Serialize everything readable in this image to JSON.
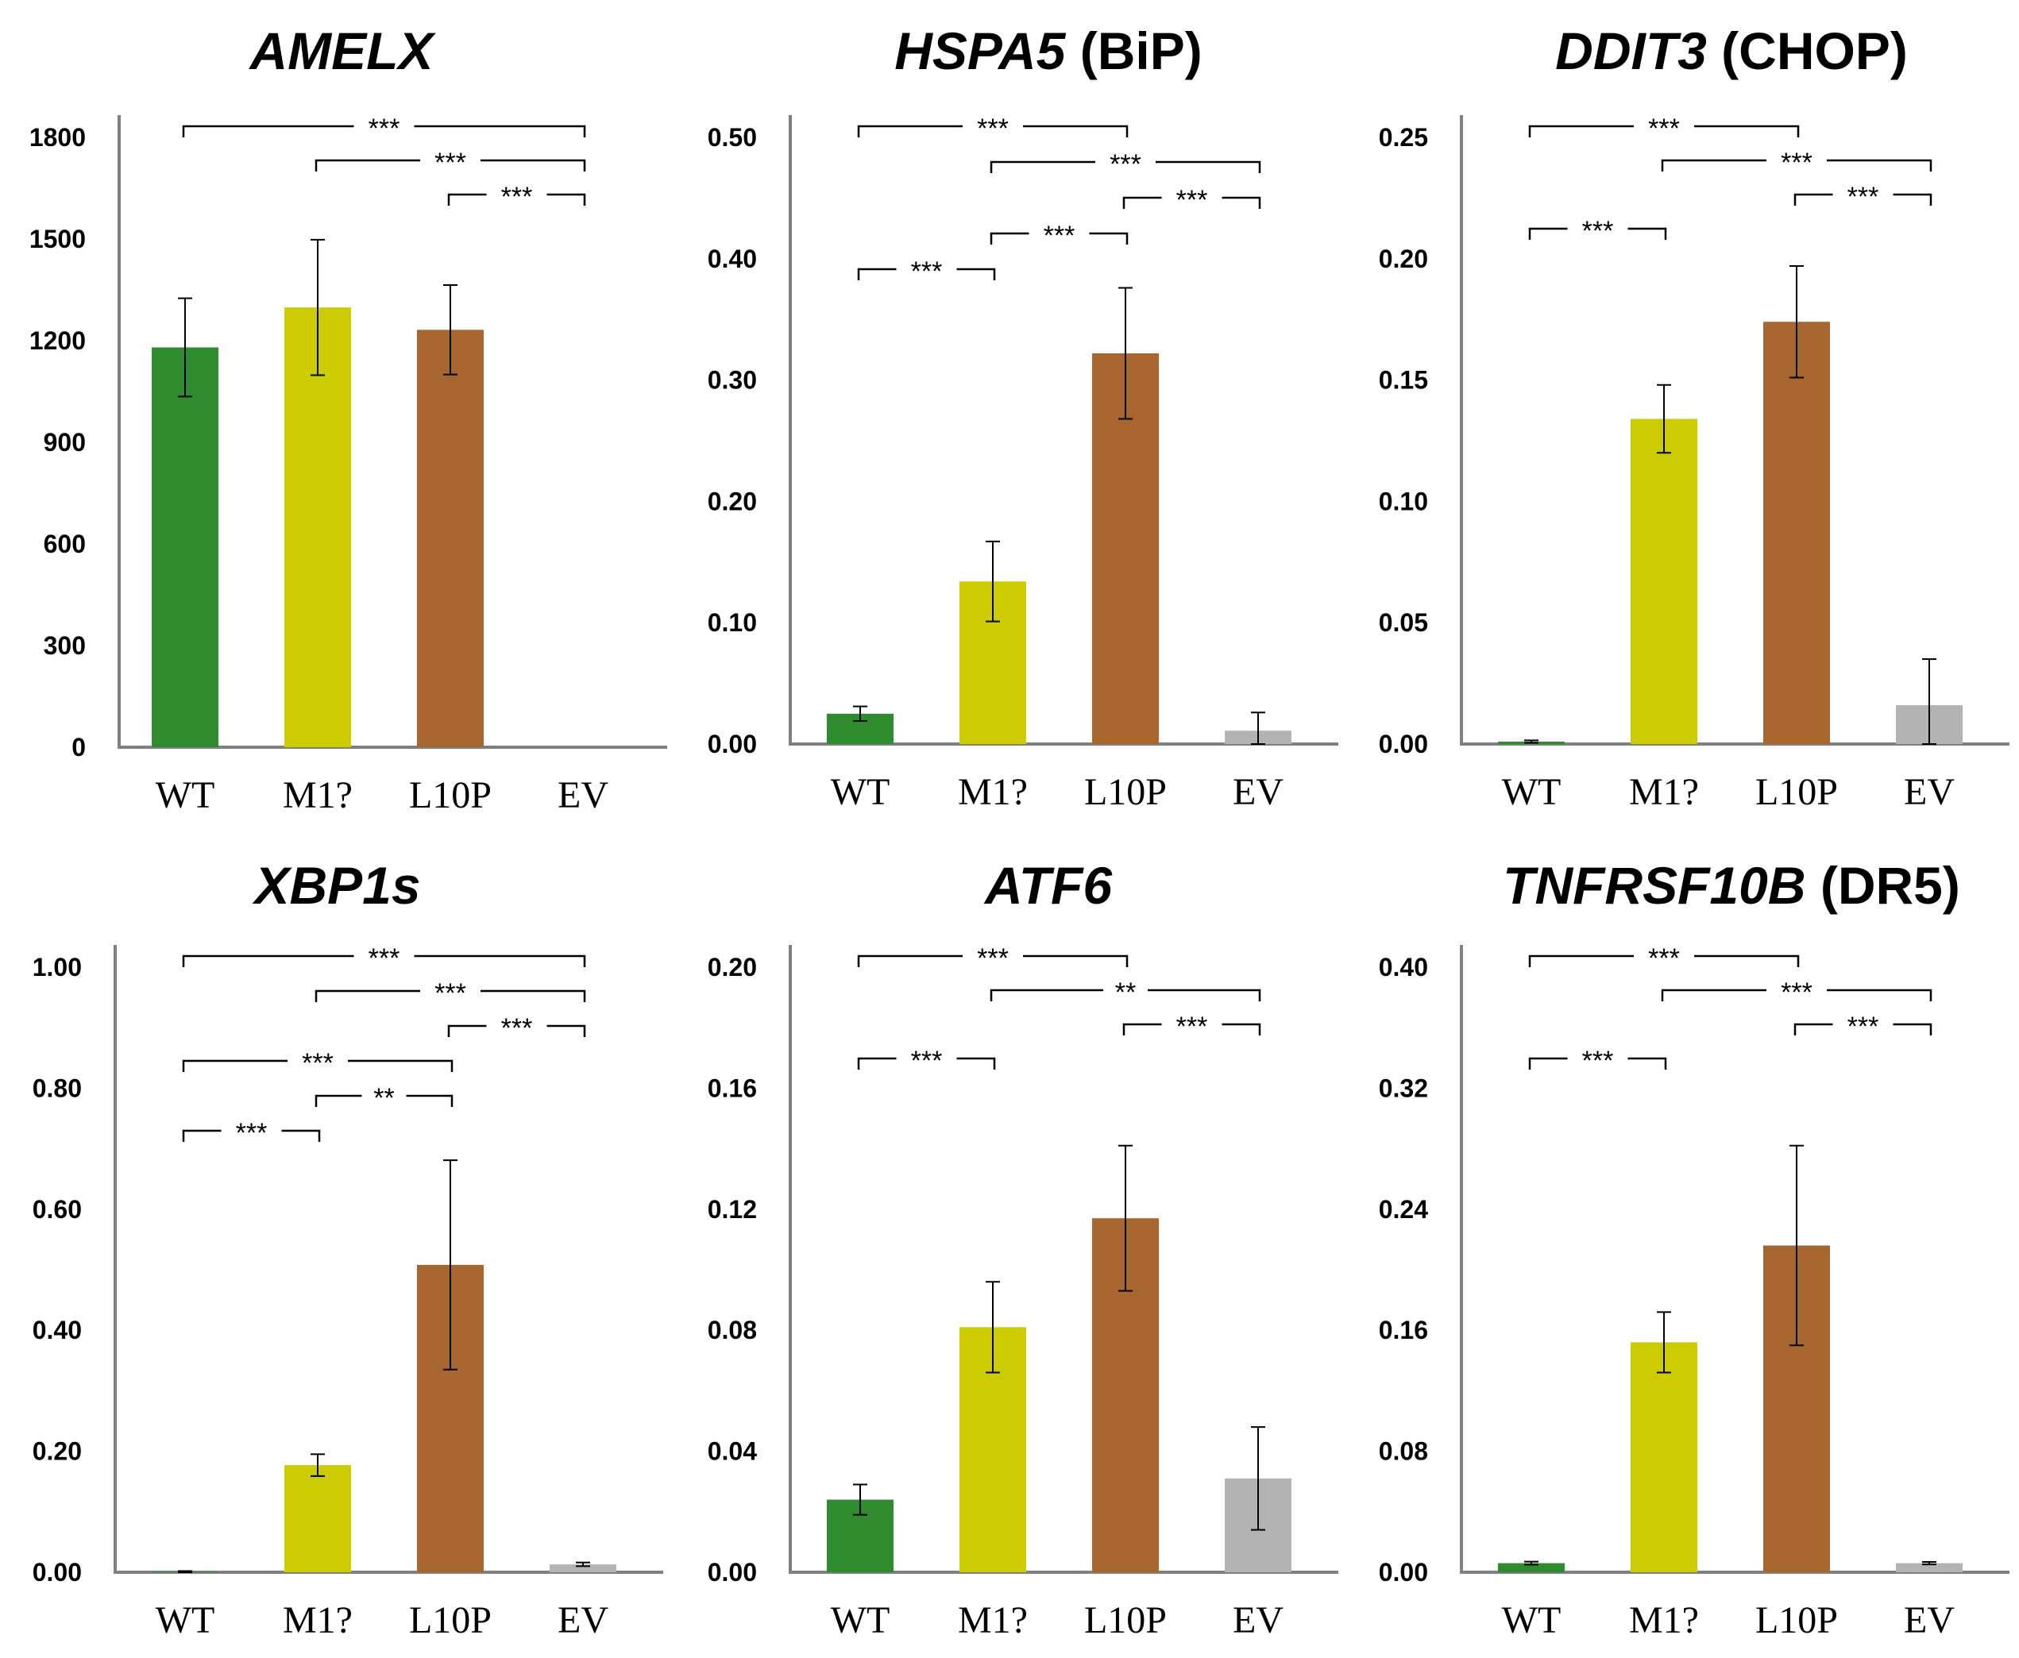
{
  "chart_data": [
    {
      "type": "bar",
      "title_italic": "AMELX",
      "title_plain": "",
      "categories": [
        "WT",
        "M1?",
        "L10P",
        "EV"
      ],
      "values": [
        1180,
        1298,
        1232,
        0
      ],
      "errors": [
        145,
        200,
        132,
        0
      ],
      "yticks": [
        "0",
        "300",
        "600",
        "900",
        "1200",
        "1500",
        "1800"
      ],
      "ylim": [
        0,
        1800
      ],
      "colors": [
        "#2e8b2e",
        "#cccc00",
        "#a8662f",
        "#b3b3b3"
      ],
      "significance": [
        {
          "from": 0,
          "to": 3,
          "label": "***"
        },
        {
          "from": 1,
          "to": 3,
          "label": "***"
        },
        {
          "from": 2,
          "to": 3,
          "label": "***"
        }
      ]
    },
    {
      "type": "bar",
      "title_italic": "HSPA5",
      "title_plain": " (BiP)",
      "categories": [
        "WT",
        "M1?",
        "L10P",
        "EV"
      ],
      "values": [
        0.025,
        0.134,
        0.322,
        0.011
      ],
      "errors": [
        0.006,
        0.033,
        0.054,
        0.015
      ],
      "yticks": [
        "0.00",
        "0.10",
        "0.20",
        "0.30",
        "0.40",
        "0.50"
      ],
      "ylim": [
        0,
        0.5
      ],
      "colors": [
        "#2e8b2e",
        "#cccc00",
        "#a8662f",
        "#b3b3b3"
      ],
      "significance": [
        {
          "from": 0,
          "to": 2,
          "label": "***"
        },
        {
          "from": 1,
          "to": 3,
          "label": "***"
        },
        {
          "from": 2,
          "to": 3,
          "label": "***"
        },
        {
          "from": 1,
          "to": 2,
          "label": "***"
        },
        {
          "from": 0,
          "to": 1,
          "label": "***"
        }
      ]
    },
    {
      "type": "bar",
      "title_italic": "DDIT3",
      "title_plain": " (CHOP)",
      "categories": [
        "WT",
        "M1?",
        "L10P",
        "EV"
      ],
      "values": [
        0.001,
        0.134,
        0.174,
        0.016
      ],
      "errors": [
        0.0005,
        0.014,
        0.023,
        0.019
      ],
      "yticks": [
        "0.00",
        "0.05",
        "0.10",
        "0.15",
        "0.20",
        "0.25"
      ],
      "ylim": [
        0,
        0.25
      ],
      "colors": [
        "#2e8b2e",
        "#cccc00",
        "#a8662f",
        "#b3b3b3"
      ],
      "significance": [
        {
          "from": 0,
          "to": 2,
          "label": "***"
        },
        {
          "from": 1,
          "to": 3,
          "label": "***"
        },
        {
          "from": 2,
          "to": 3,
          "label": "***"
        },
        {
          "from": 0,
          "to": 1,
          "label": "***"
        }
      ]
    },
    {
      "type": "bar",
      "title_italic": "XBP1s",
      "title_plain": "",
      "categories": [
        "WT",
        "M1?",
        "L10P",
        "EV"
      ],
      "values": [
        0.001,
        0.177,
        0.508,
        0.013
      ],
      "errors": [
        0.001,
        0.018,
        0.173,
        0.003
      ],
      "yticks": [
        "0.00",
        "0.20",
        "0.40",
        "0.60",
        "0.80",
        "1.00"
      ],
      "ylim": [
        0,
        1.0
      ],
      "colors": [
        "#2e8b2e",
        "#cccc00",
        "#a8662f",
        "#b3b3b3"
      ],
      "significance": [
        {
          "from": 0,
          "to": 3,
          "label": "***"
        },
        {
          "from": 1,
          "to": 3,
          "label": "***"
        },
        {
          "from": 2,
          "to": 3,
          "label": "***"
        },
        {
          "from": 0,
          "to": 2,
          "label": "***"
        },
        {
          "from": 1,
          "to": 2,
          "label": "**"
        },
        {
          "from": 0,
          "to": 1,
          "label": "***"
        }
      ]
    },
    {
      "type": "bar",
      "title_italic": "ATF6",
      "title_plain": "",
      "categories": [
        "WT",
        "M1?",
        "L10P",
        "EV"
      ],
      "values": [
        0.024,
        0.081,
        0.117,
        0.031
      ],
      "errors": [
        0.005,
        0.015,
        0.024,
        0.017
      ],
      "yticks": [
        "0.00",
        "0.04",
        "0.08",
        "0.12",
        "0.16",
        "0.20"
      ],
      "ylim": [
        0,
        0.2
      ],
      "colors": [
        "#2e8b2e",
        "#cccc00",
        "#a8662f",
        "#b3b3b3"
      ],
      "significance": [
        {
          "from": 0,
          "to": 2,
          "label": "***"
        },
        {
          "from": 1,
          "to": 3,
          "label": "**"
        },
        {
          "from": 2,
          "to": 3,
          "label": "***"
        },
        {
          "from": 0,
          "to": 1,
          "label": "***"
        }
      ]
    },
    {
      "type": "bar",
      "title_italic": "TNFRSF10B",
      "title_plain": " (DR5)",
      "categories": [
        "WT",
        "M1?",
        "L10P",
        "EV"
      ],
      "values": [
        0.006,
        0.152,
        0.216,
        0.006
      ],
      "errors": [
        0.001,
        0.02,
        0.066,
        0.0008
      ],
      "yticks": [
        "0.00",
        "0.08",
        "0.16",
        "0.24",
        "0.32",
        "0.40"
      ],
      "ylim": [
        0,
        0.4
      ],
      "colors": [
        "#2e8b2e",
        "#cccc00",
        "#a8662f",
        "#b3b3b3"
      ],
      "significance": [
        {
          "from": 0,
          "to": 2,
          "label": "***"
        },
        {
          "from": 1,
          "to": 3,
          "label": "***"
        },
        {
          "from": 2,
          "to": 3,
          "label": "***"
        },
        {
          "from": 0,
          "to": 1,
          "label": "***"
        }
      ]
    }
  ]
}
